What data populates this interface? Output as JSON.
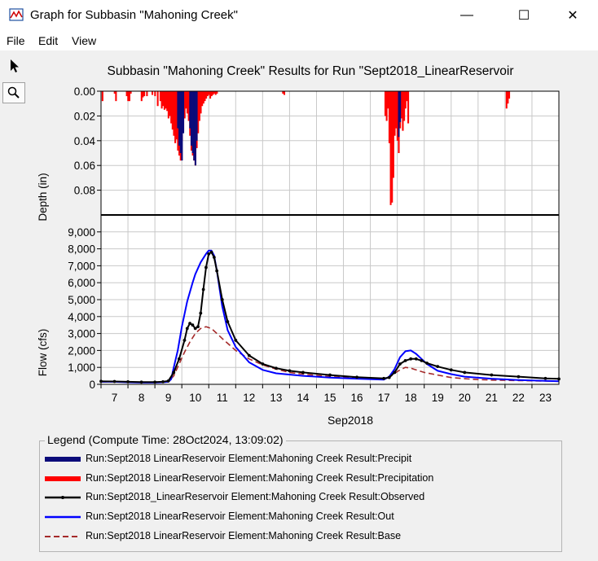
{
  "window": {
    "title": "Graph for Subbasin \"Mahoning Creek\"",
    "minimize_glyph": "—",
    "maximize_glyph": "☐",
    "close_glyph": "✕"
  },
  "menu": {
    "items": [
      "File",
      "Edit",
      "View"
    ]
  },
  "toolbar": {
    "pointer_icon": "pointer-arrow-icon",
    "zoom_icon": "magnifier-icon"
  },
  "colors": {
    "precip": "#0b0b7a",
    "precipitation": "#ff0000",
    "observed": "#000000",
    "out": "#0000ff",
    "base": "#a52a2a"
  },
  "chart_data": {
    "title": "Subbasin \"Mahoning Creek\" Results for Run \"Sept2018_LinearReservoir",
    "xlabel": "Sep2018",
    "x_ticks": [
      "7",
      "8",
      "9",
      "10",
      "11",
      "12",
      "13",
      "14",
      "15",
      "16",
      "17",
      "18",
      "19",
      "20",
      "21",
      "22",
      "23"
    ],
    "x_range": [
      6.5,
      23.5
    ],
    "top_panel": {
      "type": "bar",
      "ylabel": "Depth (in)",
      "y_inverted": true,
      "ylim": [
        0,
        0.1
      ],
      "y_ticks": [
        "0.00",
        "0.02",
        "0.04",
        "0.06",
        "0.08"
      ],
      "series": [
        {
          "name": "Run:Sept2018  LinearReservoir Element:Mahoning Creek Result:Precipitation",
          "x": [
            6.55,
            7.0,
            7.05,
            7.45,
            7.5,
            7.55,
            7.6,
            8.0,
            8.05,
            8.1,
            8.2,
            8.4,
            8.5,
            8.6,
            8.7,
            8.75,
            8.8,
            8.85,
            8.9,
            8.95,
            9.0,
            9.05,
            9.1,
            9.15,
            9.2,
            9.25,
            9.3,
            9.35,
            9.4,
            9.45,
            9.5,
            9.55,
            9.6,
            9.65,
            9.7,
            9.75,
            9.8,
            9.85,
            9.9,
            9.95,
            10.0,
            10.05,
            10.1,
            10.15,
            10.2,
            10.25,
            10.3,
            10.35,
            10.4,
            10.45,
            10.5,
            10.55,
            10.6,
            10.65,
            10.7,
            10.75,
            10.8,
            13.25,
            13.3,
            17.05,
            17.1,
            17.15,
            17.2,
            17.25,
            17.3,
            17.35,
            17.4,
            17.45,
            17.5,
            17.55,
            17.6,
            17.65,
            17.7,
            17.75,
            17.8,
            17.85,
            17.9,
            21.55,
            21.6,
            21.65
          ],
          "values": [
            0.008,
            0.002,
            0.008,
            0.004,
            0.008,
            0.008,
            0.002,
            0.008,
            0.005,
            0.004,
            0.004,
            0.003,
            0.004,
            0.012,
            0.008,
            0.014,
            0.012,
            0.015,
            0.014,
            0.016,
            0.022,
            0.02,
            0.026,
            0.031,
            0.036,
            0.042,
            0.039,
            0.048,
            0.052,
            0.056,
            0.04,
            0.032,
            0.022,
            0.014,
            0.018,
            0.024,
            0.036,
            0.048,
            0.052,
            0.056,
            0.06,
            0.046,
            0.034,
            0.024,
            0.018,
            0.012,
            0.01,
            0.008,
            0.006,
            0.004,
            0.003,
            0.006,
            0.004,
            0.003,
            0.002,
            0.003,
            0.002,
            0.002,
            0.003,
            0.02,
            0.024,
            0.014,
            0.042,
            0.092,
            0.09,
            0.07,
            0.036,
            0.03,
            0.04,
            0.05,
            0.03,
            0.022,
            0.032,
            0.024,
            0.014,
            0.008,
            0.026,
            0.014,
            0.01,
            0.006
          ]
        },
        {
          "name": "Run:Sept2018  LinearReservoir Element:Mahoning Creek Result:Precipit",
          "x": [
            9.35,
            9.4,
            9.45,
            9.5,
            9.55,
            9.8,
            9.85,
            9.9,
            9.95,
            10.0,
            10.05,
            17.55,
            17.6
          ],
          "values": [
            0.03,
            0.044,
            0.05,
            0.056,
            0.034,
            0.03,
            0.044,
            0.05,
            0.056,
            0.06,
            0.04,
            0.037,
            0.025
          ]
        }
      ]
    },
    "bottom_panel": {
      "type": "line",
      "ylabel": "Flow (cfs)",
      "ylim": [
        0,
        10000
      ],
      "y_ticks": [
        "0",
        "1,000",
        "2,000",
        "3,000",
        "4,000",
        "5,000",
        "6,000",
        "7,000",
        "8,000",
        "9,000"
      ],
      "series": [
        {
          "name": "Run:Sept2018_LinearReservoir Element:Mahoning Creek Result:Observed",
          "x": [
            6.5,
            7,
            7.5,
            8,
            8.5,
            8.8,
            9,
            9.2,
            9.4,
            9.6,
            9.7,
            9.8,
            9.9,
            10,
            10.1,
            10.2,
            10.3,
            10.4,
            10.5,
            10.6,
            10.7,
            10.8,
            11,
            11.2,
            11.5,
            12,
            12.5,
            13,
            13.5,
            14,
            15,
            16,
            17,
            17.2,
            17.4,
            17.6,
            17.8,
            18,
            18.2,
            18.4,
            18.6,
            19,
            19.5,
            20,
            21,
            22,
            23,
            23.5
          ],
          "values": [
            180,
            170,
            150,
            130,
            130,
            150,
            200,
            700,
            1500,
            2600,
            3300,
            3600,
            3500,
            3300,
            3400,
            4200,
            5600,
            6900,
            7700,
            7800,
            7500,
            6700,
            5000,
            3700,
            2600,
            1700,
            1200,
            950,
            800,
            700,
            550,
            420,
            350,
            400,
            700,
            1200,
            1400,
            1500,
            1500,
            1400,
            1250,
            1050,
            850,
            700,
            550,
            450,
            350,
            320
          ]
        },
        {
          "name": "Run:Sept2018  LinearReservoir Element:Mahoning Creek Result:Out",
          "x": [
            6.5,
            7,
            7.5,
            8,
            8.5,
            8.8,
            9,
            9.1,
            9.2,
            9.35,
            9.5,
            9.7,
            9.9,
            10,
            10.2,
            10.4,
            10.5,
            10.6,
            10.7,
            10.8,
            11,
            11.2,
            11.5,
            12,
            12.5,
            13,
            14,
            15,
            16,
            17,
            17.2,
            17.4,
            17.6,
            17.8,
            18,
            18.2,
            18.4,
            18.6,
            19,
            19.5,
            20,
            21,
            22,
            23,
            23.5
          ],
          "values": [
            150,
            150,
            120,
            100,
            100,
            120,
            150,
            300,
            1000,
            2000,
            3400,
            4900,
            6000,
            6500,
            7200,
            7700,
            7900,
            7900,
            7600,
            6700,
            4600,
            3200,
            2200,
            1300,
            850,
            650,
            500,
            400,
            330,
            280,
            450,
            900,
            1600,
            1950,
            2000,
            1800,
            1500,
            1200,
            800,
            600,
            450,
            330,
            250,
            200,
            180
          ]
        },
        {
          "name": "Run:Sept2018  LinearReservoir Element:Mahoning Creek Result:Base",
          "x": [
            6.5,
            7,
            8,
            8.5,
            9,
            9.2,
            9.4,
            9.6,
            9.8,
            10,
            10.2,
            10.4,
            10.6,
            10.8,
            11,
            11.5,
            12,
            12.5,
            13,
            13.5,
            14,
            15,
            16,
            17,
            17.2,
            17.4,
            17.6,
            17.8,
            18,
            18.2,
            18.5,
            19,
            19.5,
            20,
            20.5,
            21,
            22,
            23,
            23.5
          ],
          "values": [
            150,
            150,
            120,
            110,
            150,
            500,
            1200,
            1900,
            2500,
            3000,
            3300,
            3400,
            3300,
            3000,
            2700,
            2000,
            1500,
            1150,
            900,
            700,
            600,
            450,
            350,
            300,
            400,
            650,
            850,
            1000,
            950,
            850,
            700,
            550,
            400,
            330,
            280,
            250,
            220,
            190,
            180
          ]
        }
      ]
    },
    "legend": {
      "title": "Legend (Compute Time: 28Oct2024, 13:09:02)",
      "entries": [
        {
          "label": "Run:Sept2018  LinearReservoir Element:Mahoning Creek Result:Precipit",
          "style": "thick-bar",
          "color": "#0b0b7a"
        },
        {
          "label": "Run:Sept2018  LinearReservoir Element:Mahoning Creek Result:Precipitation",
          "style": "thick-bar",
          "color": "#ff0000"
        },
        {
          "label": "Run:Sept2018_LinearReservoir Element:Mahoning Creek Result:Observed",
          "style": "line-markers",
          "color": "#000000"
        },
        {
          "label": "Run:Sept2018  LinearReservoir Element:Mahoning Creek Result:Out",
          "style": "line",
          "color": "#0000ff"
        },
        {
          "label": "Run:Sept2018  LinearReservoir Element:Mahoning Creek Result:Base",
          "style": "dashed",
          "color": "#a52a2a"
        }
      ]
    }
  }
}
